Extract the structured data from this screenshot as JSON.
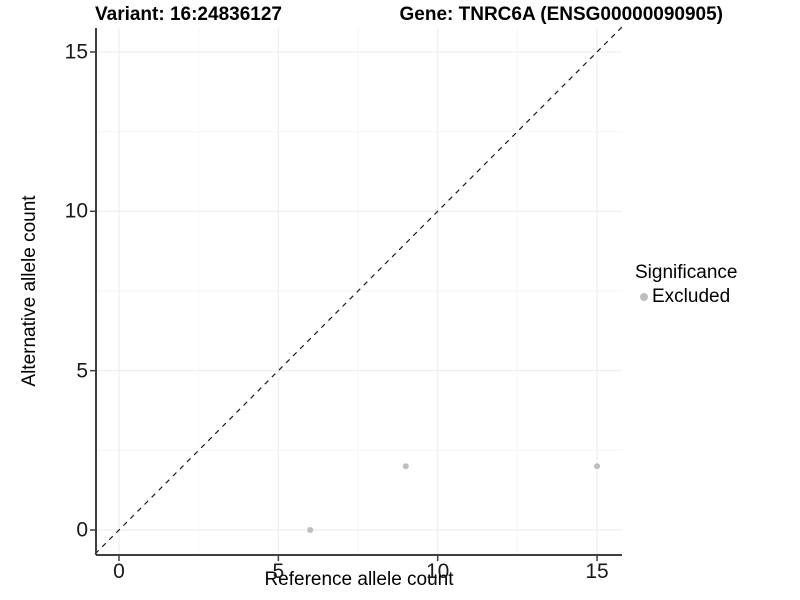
{
  "chart_data": {
    "type": "scatter",
    "title_left": "Variant: 16:24836127",
    "title_right": "Gene: TNRC6A (ENSG00000090905)",
    "xlabel": "Reference allele count",
    "ylabel": "Alternative allele count",
    "x_ticks": [
      "0",
      "5",
      "10",
      "15"
    ],
    "y_ticks": [
      "0",
      "5",
      "10",
      "15"
    ],
    "x_tick_values": [
      0,
      5,
      10,
      15
    ],
    "y_tick_values": [
      0,
      5,
      10,
      15
    ],
    "x_minor_values": [
      2.5,
      7.5,
      12.5
    ],
    "y_minor_values": [
      2.5,
      7.5,
      12.5
    ],
    "xlim": [
      -0.75,
      15.78
    ],
    "ylim": [
      -0.78,
      15.78
    ],
    "grid": true,
    "legend": {
      "title": "Significance",
      "position": "right",
      "items": [
        {
          "label": "Excluded",
          "color": "#bebebe"
        }
      ]
    },
    "series": [
      {
        "name": "Excluded",
        "color": "#bebebe",
        "points": [
          [
            6,
            0
          ],
          [
            9,
            2
          ],
          [
            15,
            2
          ]
        ]
      }
    ],
    "reference_line": {
      "type": "identity",
      "style": "dashed",
      "color": "#1a1a1a"
    },
    "colors": {
      "point": "#bebebe",
      "axis": "#3f3f3f",
      "grid_major": "#ebebeb",
      "grid_minor": "#f6f6f6"
    }
  }
}
